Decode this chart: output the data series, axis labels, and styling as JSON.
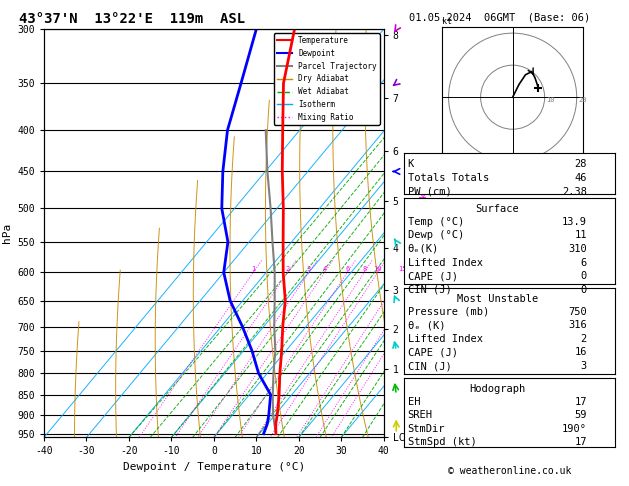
{
  "title": "43°37'N  13°22'E  119m  ASL",
  "date_title": "01.05.2024  06GMT  (Base: 06)",
  "xlabel": "Dewpoint / Temperature (°C)",
  "ylabel_left": "hPa",
  "bg_color": "#ffffff",
  "plot_bg": "#ffffff",
  "pressure_levels": [
    300,
    350,
    400,
    450,
    500,
    550,
    600,
    650,
    700,
    750,
    800,
    850,
    900,
    950
  ],
  "km_ticks": [
    8,
    7,
    6,
    5,
    4,
    3,
    2,
    1,
    "LCL"
  ],
  "km_pressures": [
    305,
    365,
    425,
    490,
    560,
    630,
    705,
    790,
    960
  ],
  "temp_color": "#ff0000",
  "dewpoint_color": "#0000ff",
  "parcel_color": "#808080",
  "dry_adiabat_color": "#cc8800",
  "wet_adiabat_color": "#00aa00",
  "isotherm_color": "#00aaff",
  "mixing_ratio_color": "#ff00ff",
  "temperature_data": {
    "pressure": [
      950,
      925,
      900,
      850,
      800,
      750,
      700,
      650,
      600,
      550,
      500,
      450,
      400,
      350,
      300
    ],
    "temp": [
      13.9,
      12.0,
      10.5,
      7.0,
      3.0,
      -1.0,
      -5.5,
      -10.0,
      -16.0,
      -22.0,
      -28.5,
      -36.0,
      -44.0,
      -53.0,
      -61.0
    ]
  },
  "dewpoint_data": {
    "pressure": [
      950,
      925,
      900,
      850,
      800,
      750,
      700,
      650,
      600,
      550,
      500,
      450,
      400,
      350,
      300
    ],
    "dewp": [
      11.0,
      10.0,
      8.5,
      5.0,
      -2.0,
      -8.0,
      -15.0,
      -23.0,
      -30.0,
      -35.0,
      -43.0,
      -50.0,
      -57.0,
      -63.0,
      -70.0
    ]
  },
  "parcel_data": {
    "pressure": [
      950,
      900,
      850,
      800,
      750,
      700,
      650,
      600,
      550,
      500,
      450,
      400
    ],
    "temp": [
      13.9,
      9.5,
      5.5,
      1.5,
      -2.5,
      -7.5,
      -12.5,
      -18.0,
      -24.5,
      -31.5,
      -39.5,
      -48.0
    ]
  },
  "mixing_ratio_values": [
    1,
    2,
    3,
    4,
    6,
    8,
    10,
    15,
    20,
    25
  ],
  "stats": {
    "K": 28,
    "Totals_Totals": 46,
    "PW_cm": 2.38,
    "Surface_Temp": 13.9,
    "Surface_Dewp": 11,
    "Surface_theta_e": 310,
    "Surface_LI": 6,
    "Surface_CAPE": 0,
    "Surface_CIN": 0,
    "MU_Pressure": 750,
    "MU_theta_e": 316,
    "MU_LI": 2,
    "MU_CAPE": 16,
    "MU_CIN": 3,
    "Hodo_EH": 17,
    "Hodo_SREH": 59,
    "StmDir": 190,
    "StmSpd": 17
  },
  "mono_font": "monospace",
  "copyright": "© weatheronline.co.uk"
}
